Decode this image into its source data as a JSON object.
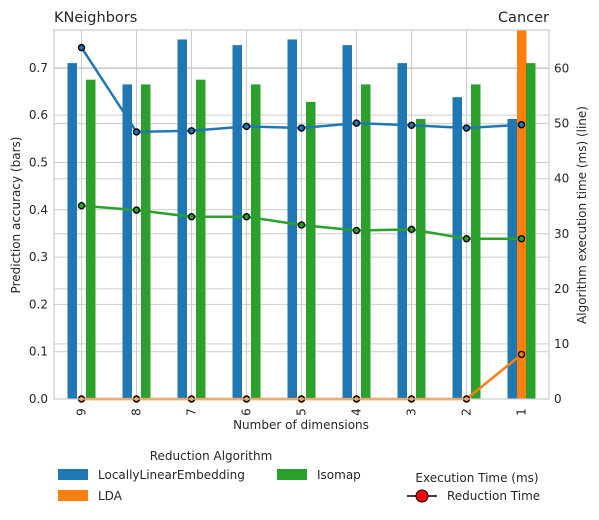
{
  "chart_data": {
    "type": "bar",
    "title_left": "KNeighbors",
    "title_right": "Cancer",
    "xlabel": "Number of dimensions",
    "ylabel_left": "Prediction accuracy (bars)",
    "ylabel_right": "Algorithm execution time (ms) (line)",
    "categories": [
      "9",
      "8",
      "7",
      "6",
      "5",
      "4",
      "3",
      "2",
      "1"
    ],
    "ylim_left": [
      0,
      0.78
    ],
    "yticks_left": [
      "0.0",
      "0.1",
      "0.2",
      "0.3",
      "0.4",
      "0.5",
      "0.6",
      "0.7"
    ],
    "ylim_right": [
      0,
      67
    ],
    "yticks_right": [
      "0",
      "10",
      "20",
      "30",
      "40",
      "50",
      "60"
    ],
    "grid": true,
    "bar_series": [
      {
        "name": "LocallyLinearEmbedding",
        "color": "#1f77b4",
        "values": [
          0.71,
          0.665,
          0.76,
          0.748,
          0.76,
          0.748,
          0.71,
          0.638,
          0.592
        ]
      },
      {
        "name": "LDA",
        "color": "#ff7f0e",
        "values": [
          null,
          null,
          null,
          null,
          null,
          null,
          null,
          null,
          0.78
        ]
      },
      {
        "name": "Isomap",
        "color": "#2ca02c",
        "values": [
          0.675,
          0.665,
          0.675,
          0.665,
          0.628,
          0.665,
          0.592,
          0.665,
          0.71
        ]
      }
    ],
    "line_series": [
      {
        "color": "#1f77b4",
        "values": [
          63.8,
          48.5,
          48.7,
          49.5,
          49.2,
          50.1,
          49.7,
          49.2,
          49.8
        ]
      },
      {
        "color": "#2ca02c",
        "values": [
          35.1,
          34.3,
          33.1,
          33.1,
          31.6,
          30.6,
          30.8,
          29.1,
          29.1
        ]
      },
      {
        "color": "#ff7f0e",
        "values": [
          0,
          0,
          0,
          0,
          0,
          0,
          0,
          0,
          8.1
        ]
      }
    ],
    "legend": {
      "title": "Reduction Algorithm",
      "items": [
        "LocallyLinearEmbedding",
        "LDA",
        "Isomap"
      ],
      "time_title": "Execution Time (ms)",
      "time_item": "Reduction Time",
      "marker_color": "#ff0000",
      "placement": "bottom"
    }
  }
}
